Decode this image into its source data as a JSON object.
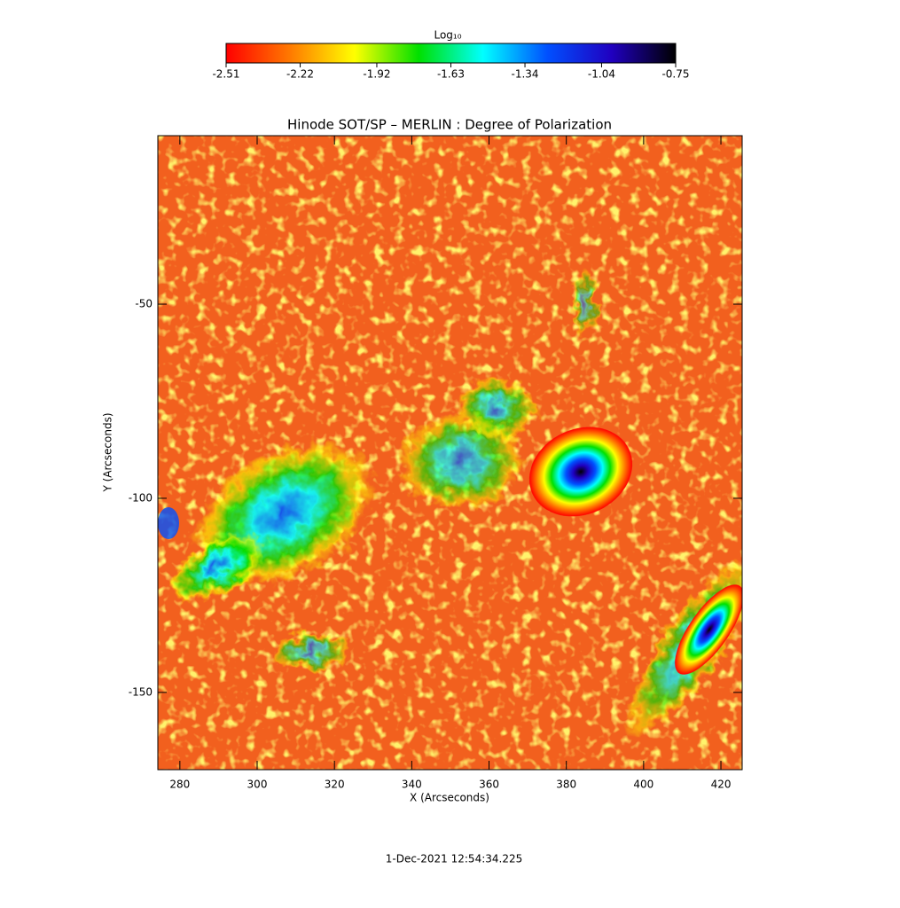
{
  "chart_data": {
    "type": "heatmap",
    "title": "Hinode SOT/SP – MERLIN : Degree of Polarization",
    "x_label": "X (Arcseconds)",
    "y_label": "Y (Arcseconds)",
    "xlim": [
      274.3,
      425.5
    ],
    "xticks": [
      280,
      300,
      320,
      340,
      360,
      380,
      400,
      420
    ],
    "ylim": [
      -169.9,
      -6.6
    ],
    "yticks": [
      -50,
      -100,
      -150
    ],
    "colorbar": {
      "label": "Log₁₀",
      "lim": [
        -2.51,
        -0.75
      ],
      "ticks": [
        -2.51,
        -2.22,
        -1.92,
        -1.63,
        -1.34,
        -1.04,
        -0.75
      ],
      "colormap": [
        "#ff0000",
        "#ff7a00",
        "#ffff00",
        "#00e000",
        "#00ffff",
        "#0050ff",
        "#2000c0",
        "#000000"
      ]
    },
    "footer": "1-Dec-2021 12:54:34.225"
  }
}
